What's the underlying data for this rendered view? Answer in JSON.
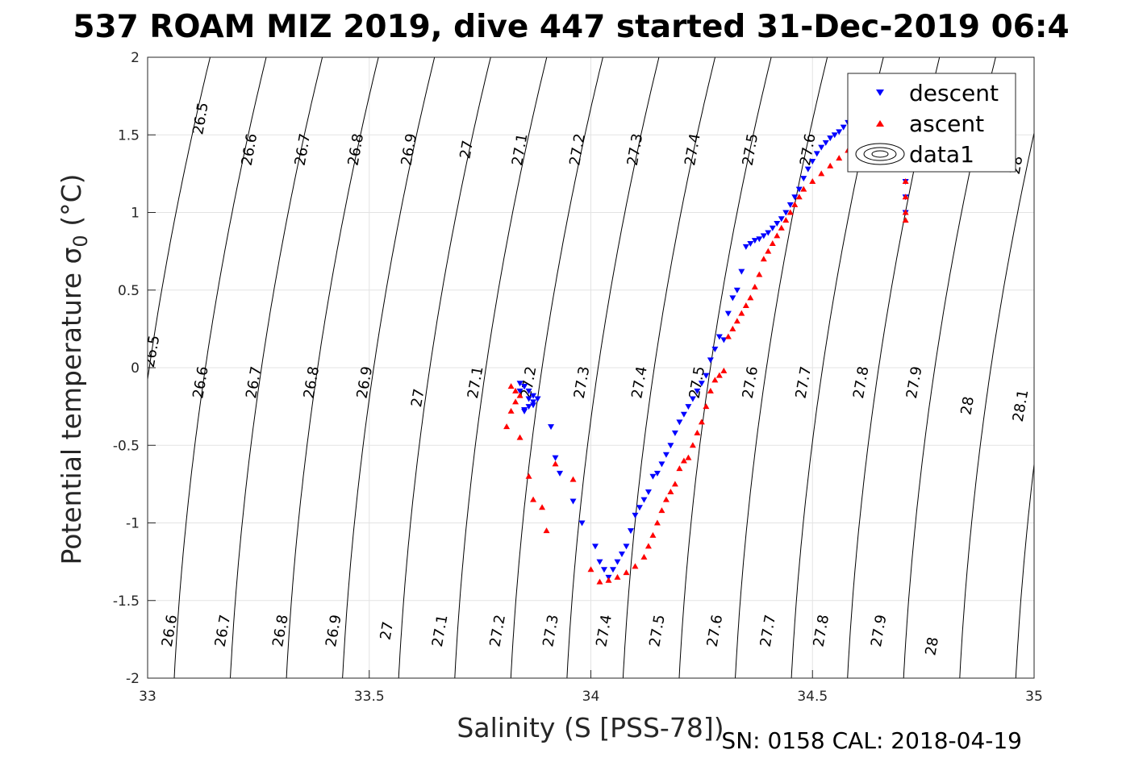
{
  "chart_data": {
    "type": "scatter",
    "title": "537 ROAM MIZ 2019, dive 447 started 31-Dec-2019 06:4",
    "xlabel": "Salinity (S [PSS-78])",
    "ylabel_main": "Potential temperature ",
    "ylabel_sigma": "σ",
    "ylabel_sub": "0",
    "ylabel_unit": " (°C)",
    "footnote": "SN: 0158  CAL: 2018-04-19",
    "xlim": [
      33,
      35
    ],
    "ylim": [
      -2,
      2
    ],
    "xticks": [
      33,
      33.5,
      34,
      34.5,
      35
    ],
    "xtick_labels": [
      "33",
      "33.5",
      "34",
      "34.5",
      "35"
    ],
    "yticks": [
      -2,
      -1.5,
      -1,
      -0.5,
      0,
      0.5,
      1,
      1.5,
      2
    ],
    "ytick_labels": [
      "-2",
      "-1.5",
      "-1",
      "-0.5",
      "0",
      "0.5",
      "1",
      "1.5",
      "2"
    ],
    "grid": true,
    "legend": {
      "placement": "top-right",
      "entries": [
        "descent",
        "ascent",
        "data1"
      ]
    },
    "colors": {
      "descent": "#0000ff",
      "ascent": "#ff0000",
      "contour": "#000000"
    },
    "density_contours": {
      "levels": [
        26.5,
        26.6,
        26.7,
        26.8,
        26.9,
        27.0,
        27.1,
        27.2,
        27.3,
        27.4,
        27.5,
        27.6,
        27.7,
        27.8,
        27.9,
        28.0,
        28.1
      ],
      "labels": [
        {
          "text": "26.5",
          "s": 33.13,
          "t": 1.6
        },
        {
          "text": "26.6",
          "s": 33.24,
          "t": 1.4
        },
        {
          "text": "26.7",
          "s": 33.36,
          "t": 1.4
        },
        {
          "text": "26.8",
          "s": 33.48,
          "t": 1.4
        },
        {
          "text": "26.9",
          "s": 33.6,
          "t": 1.4
        },
        {
          "text": "27",
          "s": 33.73,
          "t": 1.4
        },
        {
          "text": "27.1",
          "s": 33.85,
          "t": 1.4
        },
        {
          "text": "27.2",
          "s": 33.98,
          "t": 1.4
        },
        {
          "text": "27.3",
          "s": 34.11,
          "t": 1.4
        },
        {
          "text": "27.4",
          "s": 34.24,
          "t": 1.4
        },
        {
          "text": "27.5",
          "s": 34.37,
          "t": 1.4
        },
        {
          "text": "27.6",
          "s": 34.5,
          "t": 1.4
        },
        {
          "text": "28",
          "s": 34.97,
          "t": 1.3
        },
        {
          "text": "26.5",
          "s": 33.02,
          "t": 0.1
        },
        {
          "text": "26.6",
          "s": 33.13,
          "t": -0.1
        },
        {
          "text": "26.7",
          "s": 33.25,
          "t": -0.1
        },
        {
          "text": "26.8",
          "s": 33.38,
          "t": -0.1
        },
        {
          "text": "26.9",
          "s": 33.5,
          "t": -0.1
        },
        {
          "text": "27",
          "s": 33.62,
          "t": -0.2
        },
        {
          "text": "27.1",
          "s": 33.75,
          "t": -0.1
        },
        {
          "text": "27.2",
          "s": 33.87,
          "t": -0.1
        },
        {
          "text": "27.3",
          "s": 33.99,
          "t": -0.1
        },
        {
          "text": "27.4",
          "s": 34.12,
          "t": -0.1
        },
        {
          "text": "27.5",
          "s": 34.25,
          "t": -0.1
        },
        {
          "text": "27.6",
          "s": 34.37,
          "t": -0.1
        },
        {
          "text": "27.7",
          "s": 34.49,
          "t": -0.1
        },
        {
          "text": "27.8",
          "s": 34.62,
          "t": -0.1
        },
        {
          "text": "27.9",
          "s": 34.74,
          "t": -0.1
        },
        {
          "text": "28",
          "s": 34.86,
          "t": -0.25
        },
        {
          "text": "28.1",
          "s": 34.98,
          "t": -0.25
        },
        {
          "text": "26.6",
          "s": 33.06,
          "t": -1.7
        },
        {
          "text": "26.7",
          "s": 33.18,
          "t": -1.7
        },
        {
          "text": "26.8",
          "s": 33.31,
          "t": -1.7
        },
        {
          "text": "26.9",
          "s": 33.43,
          "t": -1.7
        },
        {
          "text": "27",
          "s": 33.55,
          "t": -1.7
        },
        {
          "text": "27.1",
          "s": 33.67,
          "t": -1.7
        },
        {
          "text": "27.2",
          "s": 33.8,
          "t": -1.7
        },
        {
          "text": "27.3",
          "s": 33.92,
          "t": -1.7
        },
        {
          "text": "27.4",
          "s": 34.04,
          "t": -1.7
        },
        {
          "text": "27.5",
          "s": 34.16,
          "t": -1.7
        },
        {
          "text": "27.6",
          "s": 34.29,
          "t": -1.7
        },
        {
          "text": "27.7",
          "s": 34.41,
          "t": -1.7
        },
        {
          "text": "27.8",
          "s": 34.53,
          "t": -1.7
        },
        {
          "text": "27.9",
          "s": 34.66,
          "t": -1.7
        },
        {
          "text": "28",
          "s": 34.78,
          "t": -1.8
        }
      ]
    },
    "series": [
      {
        "name": "descent",
        "marker": "triangle-down",
        "color": "#0000ff",
        "x": [
          33.84,
          33.85,
          33.86,
          33.87,
          33.88,
          33.87,
          33.86,
          33.85,
          33.84,
          33.85,
          33.86,
          33.87,
          33.85,
          33.91,
          33.92,
          33.93,
          33.96,
          33.98,
          34.01,
          34.02,
          34.03,
          34.04,
          34.05,
          34.06,
          34.07,
          34.08,
          34.09,
          34.1,
          34.11,
          34.12,
          34.13,
          34.14,
          34.15,
          34.16,
          34.17,
          34.18,
          34.19,
          34.2,
          34.21,
          34.22,
          34.23,
          34.24,
          34.25,
          34.26,
          34.27,
          34.28,
          34.29,
          34.3,
          34.31,
          34.32,
          34.33,
          34.34,
          34.35,
          34.36,
          34.37,
          34.38,
          34.39,
          34.4,
          34.41,
          34.42,
          34.43,
          34.44,
          34.45,
          34.46,
          34.47,
          34.48,
          34.49,
          34.5,
          34.51,
          34.52,
          34.53,
          34.54,
          34.55,
          34.56,
          34.57,
          34.58,
          34.6,
          34.62,
          34.64,
          34.66,
          34.68,
          34.7,
          34.71,
          34.71,
          34.71
        ],
        "y": [
          -0.1,
          -0.12,
          -0.15,
          -0.18,
          -0.2,
          -0.22,
          -0.25,
          -0.27,
          -0.15,
          -0.12,
          -0.2,
          -0.24,
          -0.28,
          -0.38,
          -0.58,
          -0.68,
          -0.86,
          -1.0,
          -1.15,
          -1.25,
          -1.3,
          -1.35,
          -1.3,
          -1.25,
          -1.2,
          -1.15,
          -1.05,
          -0.95,
          -0.9,
          -0.85,
          -0.8,
          -0.7,
          -0.68,
          -0.62,
          -0.56,
          -0.5,
          -0.42,
          -0.35,
          -0.3,
          -0.25,
          -0.2,
          -0.15,
          -0.1,
          -0.05,
          0.05,
          0.12,
          0.2,
          0.18,
          0.35,
          0.45,
          0.5,
          0.62,
          0.78,
          0.8,
          0.82,
          0.83,
          0.85,
          0.87,
          0.9,
          0.93,
          0.96,
          1.0,
          1.05,
          1.1,
          1.15,
          1.22,
          1.28,
          1.33,
          1.38,
          1.42,
          1.45,
          1.48,
          1.5,
          1.52,
          1.55,
          1.58,
          1.62,
          1.55,
          1.5,
          1.45,
          1.38,
          1.3,
          1.2,
          1.1,
          1.0
        ]
      },
      {
        "name": "ascent",
        "marker": "triangle-up",
        "color": "#ff0000",
        "x": [
          33.82,
          33.83,
          33.84,
          33.83,
          33.82,
          33.81,
          33.84,
          33.86,
          33.87,
          33.89,
          33.9,
          33.92,
          33.96,
          34.0,
          34.02,
          34.04,
          34.06,
          34.08,
          34.1,
          34.12,
          34.13,
          34.14,
          34.15,
          34.16,
          34.17,
          34.18,
          34.19,
          34.2,
          34.21,
          34.22,
          34.23,
          34.24,
          34.25,
          34.26,
          34.27,
          34.28,
          34.29,
          34.3,
          34.31,
          34.32,
          34.33,
          34.34,
          34.35,
          34.36,
          34.37,
          34.38,
          34.39,
          34.4,
          34.41,
          34.42,
          34.43,
          34.44,
          34.45,
          34.46,
          34.47,
          34.48,
          34.5,
          34.52,
          34.54,
          34.56,
          34.58,
          34.6,
          34.62,
          34.64,
          34.66,
          34.68,
          34.7,
          34.71,
          34.71,
          34.71,
          34.71
        ],
        "y": [
          -0.12,
          -0.15,
          -0.18,
          -0.22,
          -0.28,
          -0.38,
          -0.45,
          -0.7,
          -0.85,
          -0.9,
          -1.05,
          -0.62,
          -0.72,
          -1.3,
          -1.38,
          -1.37,
          -1.35,
          -1.32,
          -1.28,
          -1.22,
          -1.15,
          -1.08,
          -1.0,
          -0.92,
          -0.85,
          -0.8,
          -0.75,
          -0.65,
          -0.6,
          -0.58,
          -0.5,
          -0.42,
          -0.35,
          -0.25,
          -0.15,
          -0.08,
          -0.05,
          -0.02,
          0.2,
          0.25,
          0.3,
          0.35,
          0.4,
          0.45,
          0.52,
          0.6,
          0.7,
          0.75,
          0.8,
          0.85,
          0.9,
          0.95,
          1.0,
          1.05,
          1.1,
          1.15,
          1.2,
          1.25,
          1.3,
          1.35,
          1.4,
          1.45,
          1.5,
          1.52,
          1.45,
          1.4,
          1.3,
          1.2,
          1.1,
          1.0,
          0.95
        ]
      }
    ]
  }
}
